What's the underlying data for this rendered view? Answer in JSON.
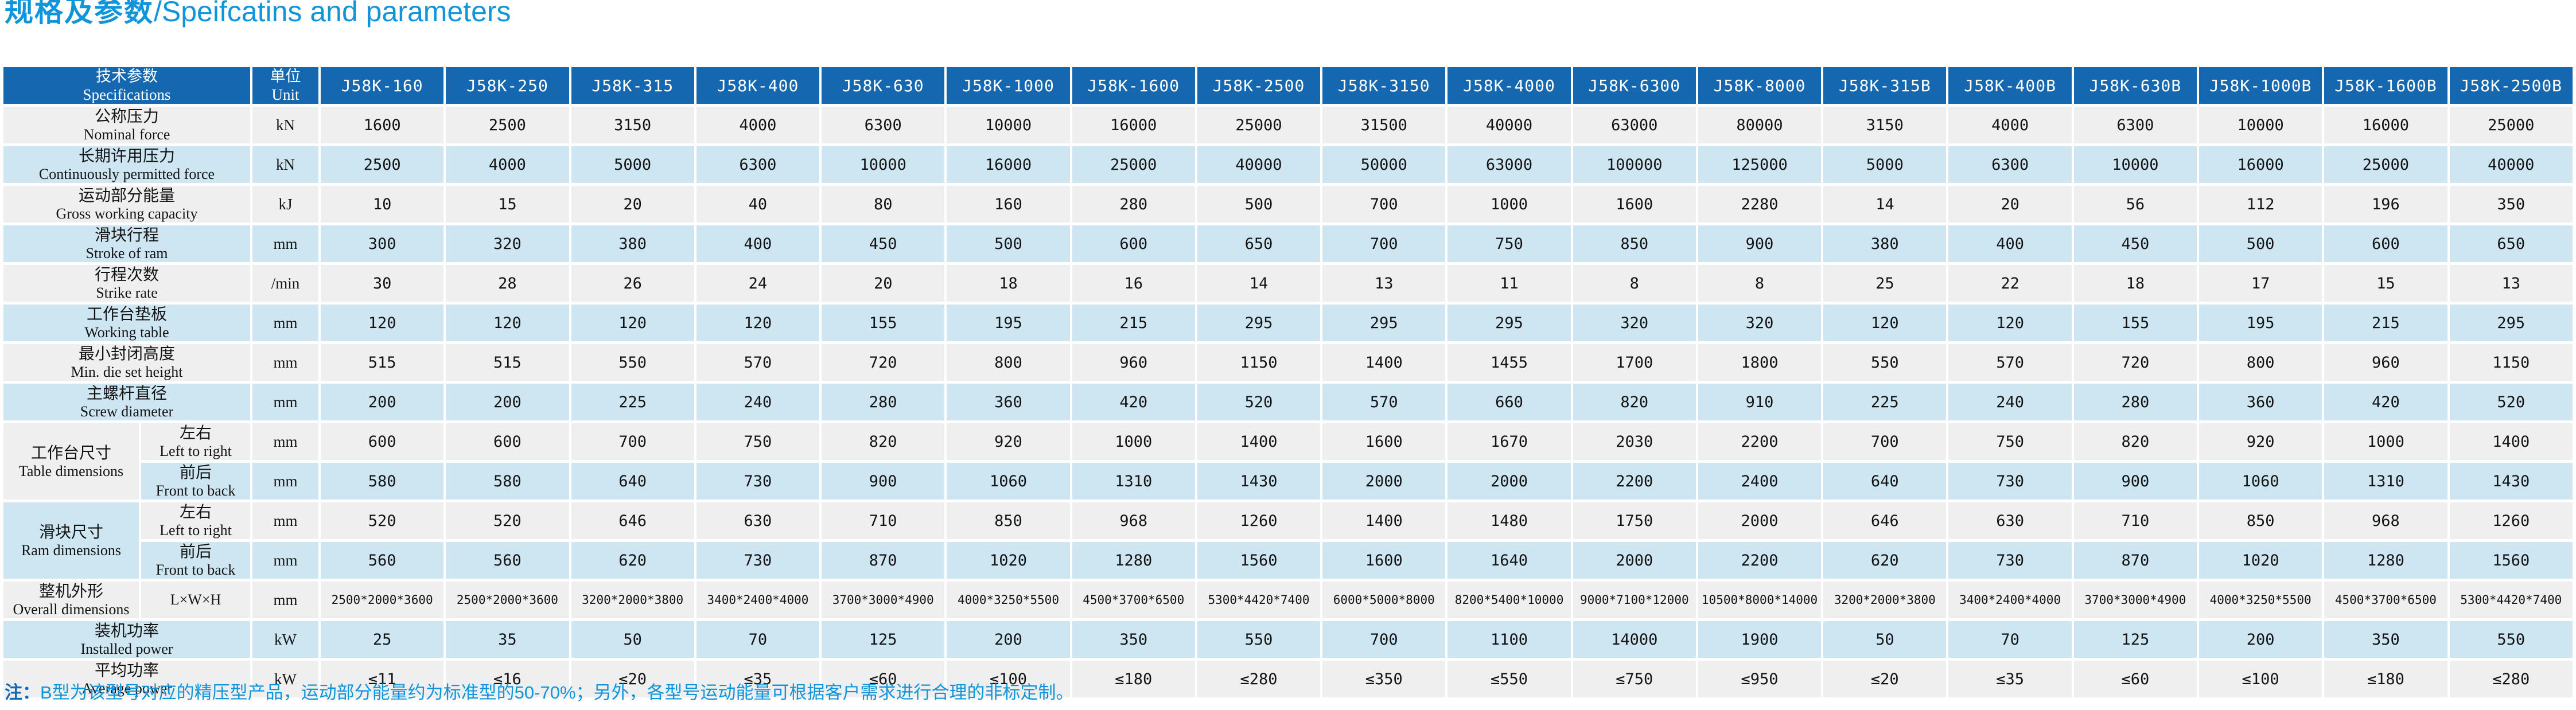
{
  "title": {
    "zh": "规格及参数",
    "en": "/Speifcatins and parameters"
  },
  "note": {
    "prefix": "注：",
    "text": "B型为该型号对应的精压型产品，运动部分能量约为标准型的50-70%；另外，各型号运动能量可根据客户需求进行合理的非标定制。"
  },
  "colors": {
    "accent_blue": "#1095DB",
    "header_bg": "#1568B0",
    "row_gray": "#EFEFEF",
    "row_blue": "#CDE6F2"
  },
  "table": {
    "spec_header": {
      "zh": "技术参数",
      "en": "Specifications"
    },
    "unit_header": {
      "zh": "单位",
      "en": "Unit"
    },
    "models": [
      "J58K-160",
      "J58K-250",
      "J58K-315",
      "J58K-400",
      "J58K-630",
      "J58K-1000",
      "J58K-1600",
      "J58K-2500",
      "J58K-3150",
      "J58K-4000",
      "J58K-6300",
      "J58K-8000",
      "J58K-315B",
      "J58K-400B",
      "J58K-630B",
      "J58K-1000B",
      "J58K-1600B",
      "J58K-2500B"
    ],
    "rows": [
      {
        "zh": "公称压力",
        "en": "Nominal force",
        "unit": "kN",
        "tone": "gray",
        "values": [
          "1600",
          "2500",
          "3150",
          "4000",
          "6300",
          "10000",
          "16000",
          "25000",
          "31500",
          "40000",
          "63000",
          "80000",
          "3150",
          "4000",
          "6300",
          "10000",
          "16000",
          "25000"
        ]
      },
      {
        "zh": "长期许用压力",
        "en": "Continuously permitted force",
        "unit": "kN",
        "tone": "blue",
        "values": [
          "2500",
          "4000",
          "5000",
          "6300",
          "10000",
          "16000",
          "25000",
          "40000",
          "50000",
          "63000",
          "100000",
          "125000",
          "5000",
          "6300",
          "10000",
          "16000",
          "25000",
          "40000"
        ]
      },
      {
        "zh": "运动部分能量",
        "en": "Gross working capacity",
        "unit": "kJ",
        "tone": "gray",
        "values": [
          "10",
          "15",
          "20",
          "40",
          "80",
          "160",
          "280",
          "500",
          "700",
          "1000",
          "1600",
          "2280",
          "14",
          "20",
          "56",
          "112",
          "196",
          "350"
        ]
      },
      {
        "zh": "滑块行程",
        "en": "Stroke of ram",
        "unit": "mm",
        "tone": "blue",
        "values": [
          "300",
          "320",
          "380",
          "400",
          "450",
          "500",
          "600",
          "650",
          "700",
          "750",
          "850",
          "900",
          "380",
          "400",
          "450",
          "500",
          "600",
          "650"
        ]
      },
      {
        "zh": "行程次数",
        "en": "Strike rate",
        "unit": "/min",
        "tone": "gray",
        "values": [
          "30",
          "28",
          "26",
          "24",
          "20",
          "18",
          "16",
          "14",
          "13",
          "11",
          "8",
          "8",
          "25",
          "22",
          "18",
          "17",
          "15",
          "13"
        ]
      },
      {
        "zh": "工作台垫板",
        "en": "Working table",
        "unit": "mm",
        "tone": "blue",
        "values": [
          "120",
          "120",
          "120",
          "120",
          "155",
          "195",
          "215",
          "295",
          "295",
          "295",
          "320",
          "320",
          "120",
          "120",
          "155",
          "195",
          "215",
          "295"
        ]
      },
      {
        "zh": "最小封闭高度",
        "en": "Min. die set height",
        "unit": "mm",
        "tone": "gray",
        "values": [
          "515",
          "515",
          "550",
          "570",
          "720",
          "800",
          "960",
          "1150",
          "1400",
          "1455",
          "1700",
          "1800",
          "550",
          "570",
          "720",
          "800",
          "960",
          "1150"
        ]
      },
      {
        "zh": "主螺杆直径",
        "en": "Screw diameter",
        "unit": "mm",
        "tone": "blue",
        "values": [
          "200",
          "200",
          "225",
          "240",
          "280",
          "360",
          "420",
          "520",
          "570",
          "660",
          "820",
          "910",
          "225",
          "240",
          "280",
          "360",
          "420",
          "520"
        ]
      },
      {
        "group": {
          "zh": "工作台尺寸",
          "en": "Table dimensions",
          "span": 2,
          "tone": "gray"
        },
        "zh": "左右",
        "en": "Left to right",
        "unit": "mm",
        "tone": "gray",
        "values": [
          "600",
          "600",
          "700",
          "750",
          "820",
          "920",
          "1000",
          "1400",
          "1600",
          "1670",
          "2030",
          "2200",
          "700",
          "750",
          "820",
          "920",
          "1000",
          "1400"
        ]
      },
      {
        "in_group": true,
        "zh": "前后",
        "en": "Front to back",
        "unit": "mm",
        "tone": "blue",
        "values": [
          "580",
          "580",
          "640",
          "730",
          "900",
          "1060",
          "1310",
          "1430",
          "2000",
          "2000",
          "2200",
          "2400",
          "640",
          "730",
          "900",
          "1060",
          "1310",
          "1430"
        ]
      },
      {
        "group": {
          "zh": "滑块尺寸",
          "en": "Ram dimensions",
          "span": 2,
          "tone": "blue"
        },
        "zh": "左右",
        "en": "Left to right",
        "unit": "mm",
        "tone": "gray",
        "values": [
          "520",
          "520",
          "646",
          "630",
          "710",
          "850",
          "968",
          "1260",
          "1400",
          "1480",
          "1750",
          "2000",
          "646",
          "630",
          "710",
          "850",
          "968",
          "1260"
        ]
      },
      {
        "in_group": true,
        "zh": "前后",
        "en": "Front to back",
        "unit": "mm",
        "tone": "blue",
        "values": [
          "560",
          "560",
          "620",
          "730",
          "870",
          "1020",
          "1280",
          "1560",
          "1600",
          "1640",
          "2000",
          "2200",
          "620",
          "730",
          "870",
          "1020",
          "1280",
          "1560"
        ]
      },
      {
        "group": {
          "zh": "整机外形",
          "en": "Overall dimensions",
          "span": 1,
          "tone": "gray"
        },
        "zh": "L×W×H",
        "en": "",
        "unit": "mm",
        "tone": "gray",
        "dims": true,
        "values": [
          "2500*2000*3600",
          "2500*2000*3600",
          "3200*2000*3800",
          "3400*2400*4000",
          "3700*3000*4900",
          "4000*3250*5500",
          "4500*3700*6500",
          "5300*4420*7400",
          "6000*5000*8000",
          "8200*5400*10000",
          "9000*7100*12000",
          "10500*8000*14000",
          "3200*2000*3800",
          "3400*2400*4000",
          "3700*3000*4900",
          "4000*3250*5500",
          "4500*3700*6500",
          "5300*4420*7400"
        ]
      },
      {
        "zh": "装机功率",
        "en": "Installed power",
        "unit": "kW",
        "tone": "blue",
        "values": [
          "25",
          "35",
          "50",
          "70",
          "125",
          "200",
          "350",
          "550",
          "700",
          "1100",
          "14000",
          "1900",
          "50",
          "70",
          "125",
          "200",
          "350",
          "550"
        ]
      },
      {
        "zh": "平均功率",
        "en": "Average power",
        "unit": "kW",
        "tone": "gray",
        "values": [
          "≤11",
          "≤16",
          "≤20",
          "≤35",
          "≤60",
          "≤100",
          "≤180",
          "≤280",
          "≤350",
          "≤550",
          "≤750",
          "≤950",
          "≤20",
          "≤35",
          "≤60",
          "≤100",
          "≤180",
          "≤280"
        ]
      }
    ]
  }
}
